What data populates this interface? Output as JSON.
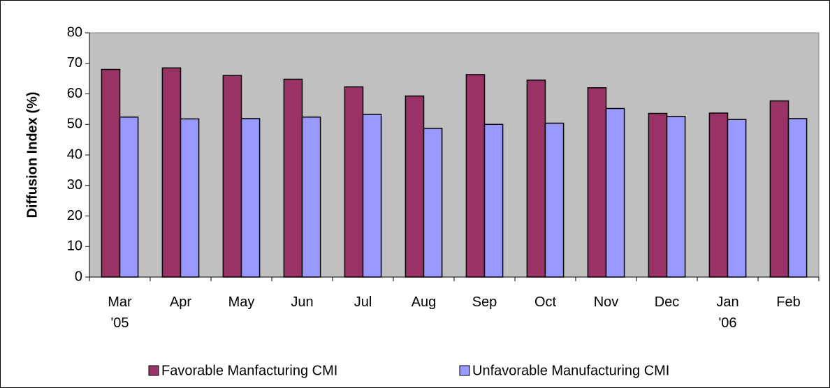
{
  "chart_data": {
    "type": "bar",
    "y_label": "Diffusion Index (%)",
    "categories": [
      "Mar '05",
      "Apr",
      "May",
      "Jun",
      "Jul",
      "Aug",
      "Sep",
      "Oct",
      "Nov",
      "Dec",
      "Jan '06",
      "Feb"
    ],
    "series": [
      {
        "name": "Favorable Manfacturing CMI",
        "color": "#993366",
        "values": [
          68,
          68.5,
          66,
          64.8,
          62.3,
          59.3,
          66.3,
          64.5,
          62,
          53.6,
          53.7,
          57.7
        ]
      },
      {
        "name": "Unfavorable Manufacturing CMI",
        "color": "#9999ff",
        "values": [
          52.4,
          51.8,
          51.9,
          52.4,
          53.3,
          48.7,
          50,
          50.4,
          55.2,
          52.6,
          51.6,
          51.9
        ]
      }
    ],
    "ylim": [
      0,
      80
    ],
    "yticks": [
      0,
      10,
      20,
      30,
      40,
      50,
      60,
      70,
      80
    ],
    "plot_background": "#c0c0c0",
    "legend": "bottom"
  }
}
